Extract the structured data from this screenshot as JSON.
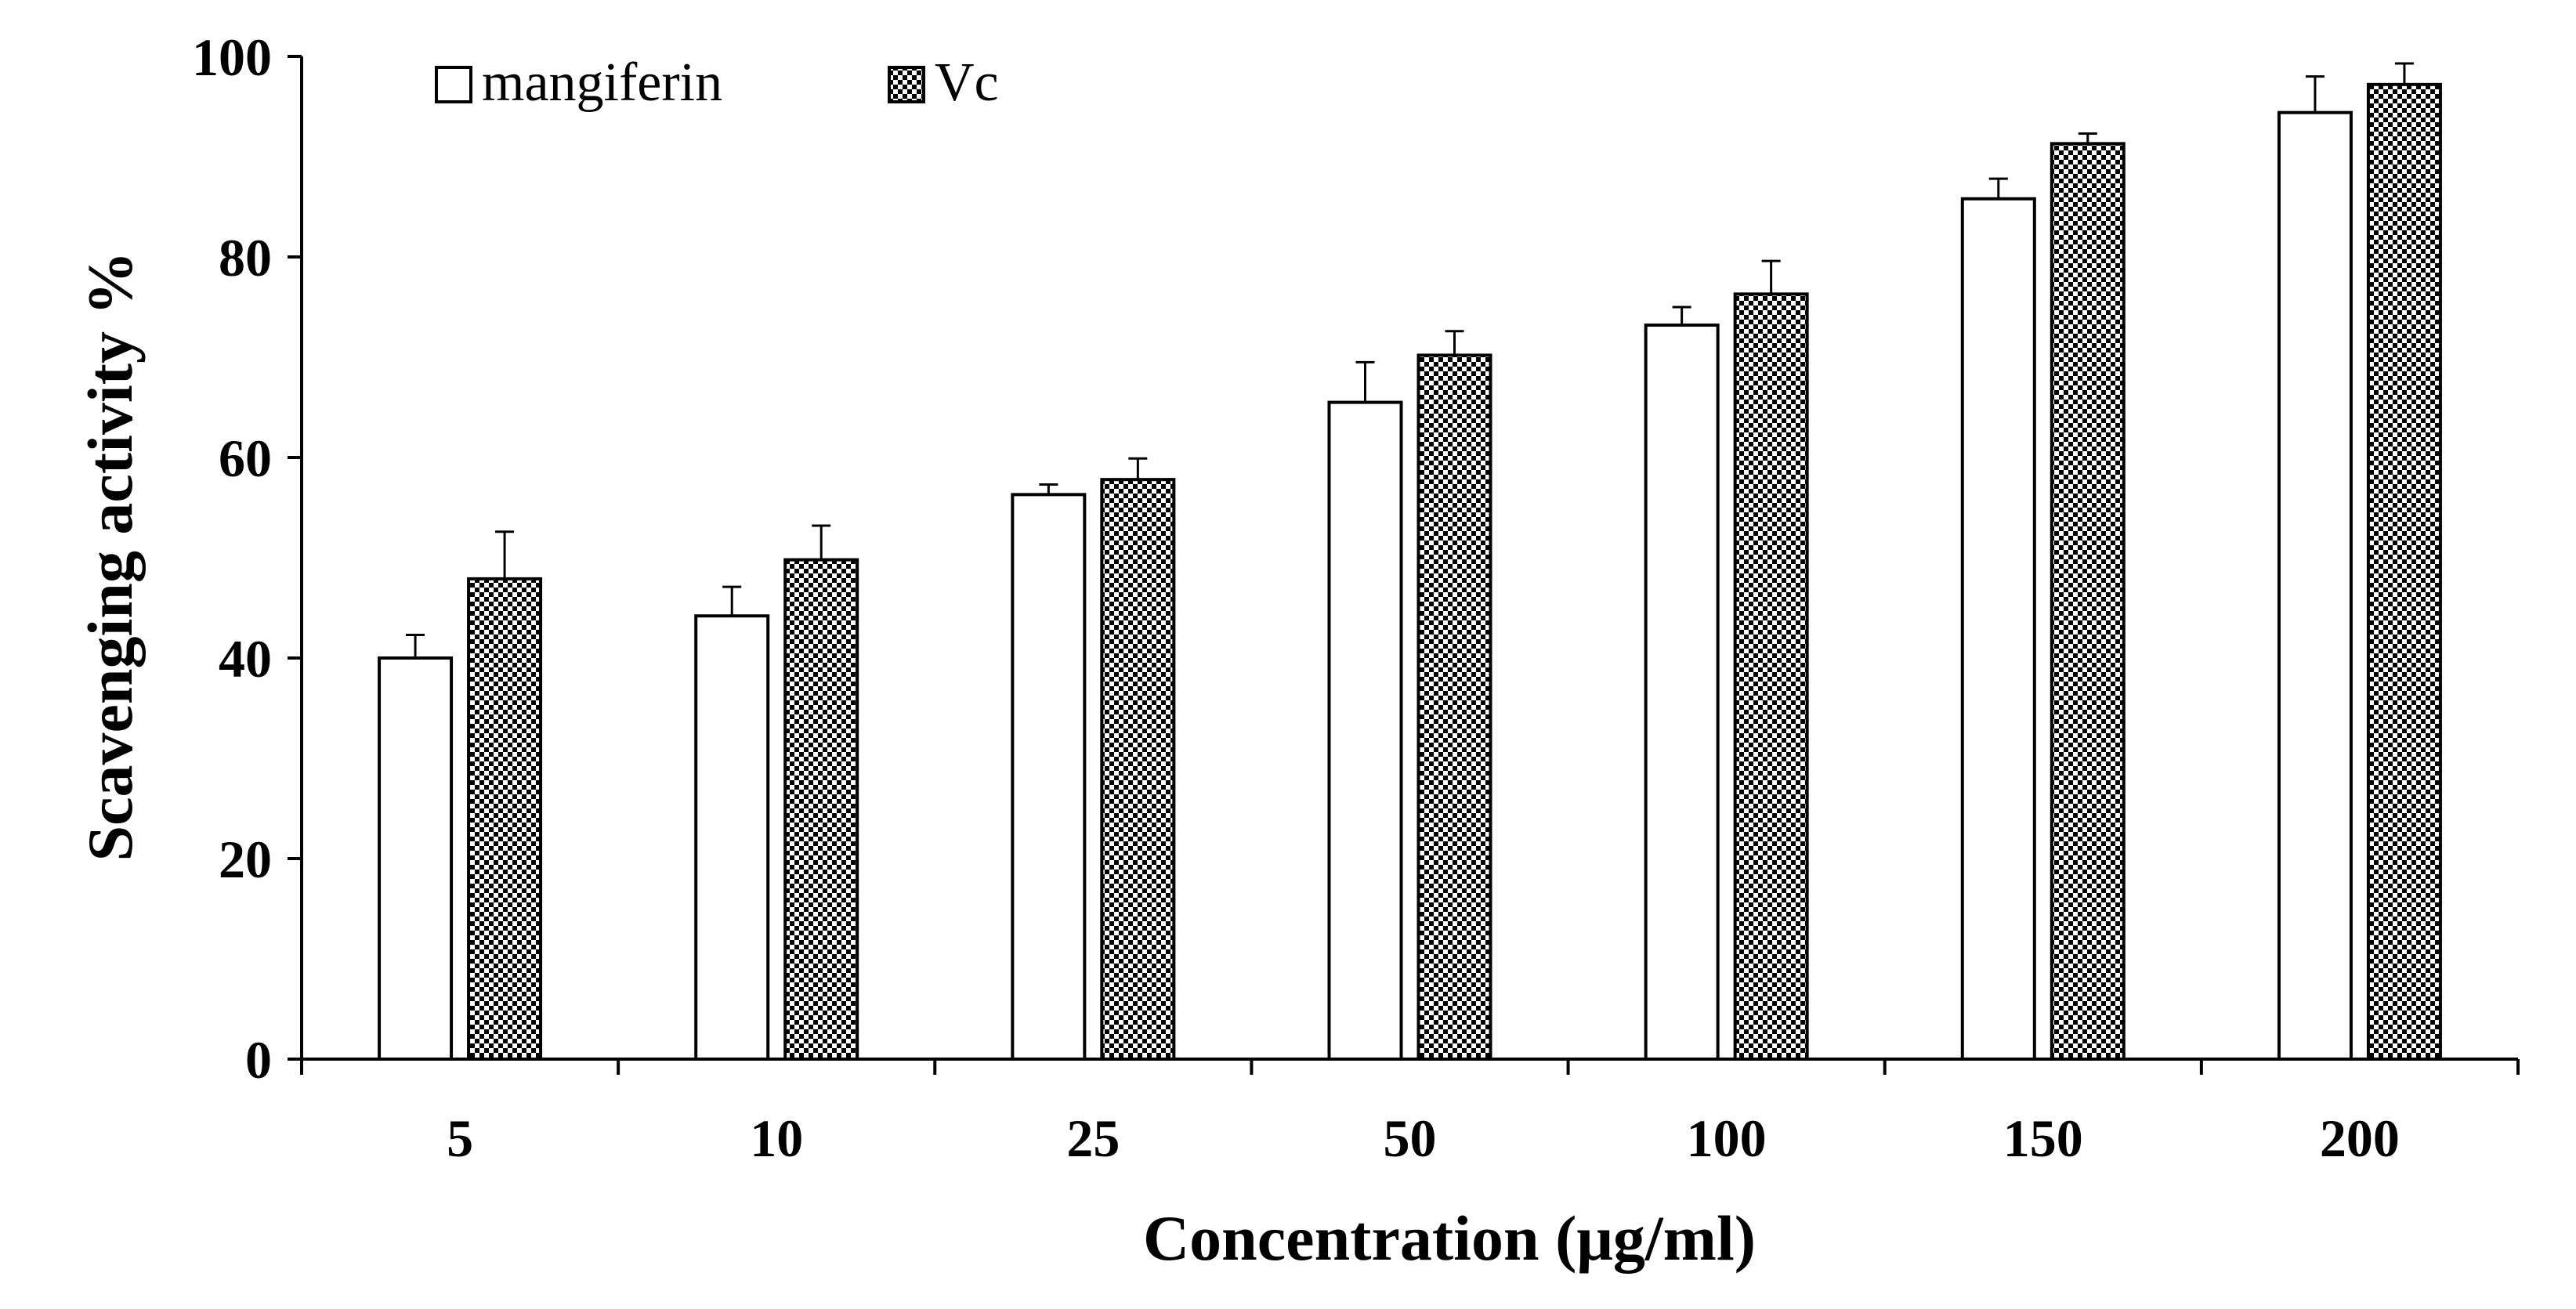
{
  "chart_data": {
    "type": "bar",
    "title": "",
    "xlabel": "Concentration (μg/ml)",
    "ylabel": "Scavenging activity %",
    "categories": [
      "5",
      "10",
      "25",
      "50",
      "100",
      "150",
      "200"
    ],
    "ylim": [
      0,
      100
    ],
    "yticks": [
      0,
      20,
      40,
      60,
      80,
      100
    ],
    "ytick_labels": [
      "0",
      "20",
      "40",
      "60",
      "80",
      "100"
    ],
    "grid": false,
    "legend_position": "top-left",
    "series": [
      {
        "name": "mangiferin",
        "fill": "white",
        "values": [
          40.0,
          44.2,
          56.3,
          65.5,
          73.2,
          85.8,
          94.4
        ],
        "errors": [
          2.3,
          2.9,
          1.0,
          4.0,
          1.8,
          2.0,
          3.6
        ]
      },
      {
        "name": "Vc",
        "fill": "checkered",
        "values": [
          47.9,
          49.8,
          57.8,
          70.2,
          76.3,
          91.3,
          97.2
        ],
        "errors": [
          4.7,
          3.4,
          2.1,
          2.4,
          3.3,
          1.0,
          2.1
        ]
      }
    ]
  },
  "colors": {
    "stroke": "#000000",
    "background": "#ffffff",
    "pattern_dark": "#000000",
    "pattern_light": "#ffffff"
  }
}
